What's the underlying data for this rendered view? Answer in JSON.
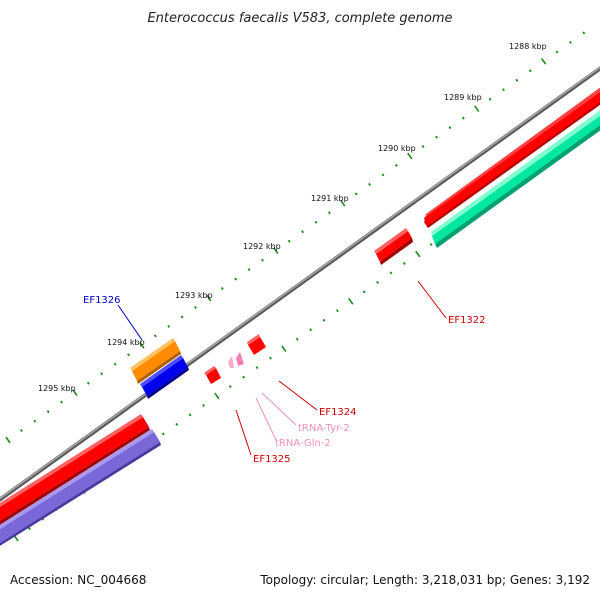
{
  "title": "Enterococcus faecalis V583, complete genome",
  "ticks": [
    "1288 kbp",
    "1289 kbp",
    "1290 kbp",
    "1291 kbp",
    "1292 kbp",
    "1293 kbp",
    "1294 kbp",
    "1295 kbp"
  ],
  "genes": [
    {
      "label": "EF1322",
      "color": "#d00000"
    },
    {
      "label": "EF1324",
      "color": "#d00000"
    },
    {
      "label": "tRNA-Tyr-2",
      "color": "#f090b8"
    },
    {
      "label": "tRNA-Gln-2",
      "color": "#f090b8"
    },
    {
      "label": "EF1325",
      "color": "#d00000"
    },
    {
      "label": "EF1326",
      "color": "#0000cc"
    }
  ],
  "colors": {
    "forward_cds": "#ff0000",
    "orange_feature": "#ff8c00",
    "blue_feature": "#0000ee",
    "green_feature": "#00e8a0",
    "purple_feature": "#7a68d8",
    "trna": "#f47fb4",
    "backbone": "#8a8a8a",
    "tick_marks": "#1a8a1a"
  },
  "footer": {
    "accession": "Accession: NC_004668",
    "summary": "Topology: circular; Length: 3,218,031 bp; Genes: 3,192"
  }
}
